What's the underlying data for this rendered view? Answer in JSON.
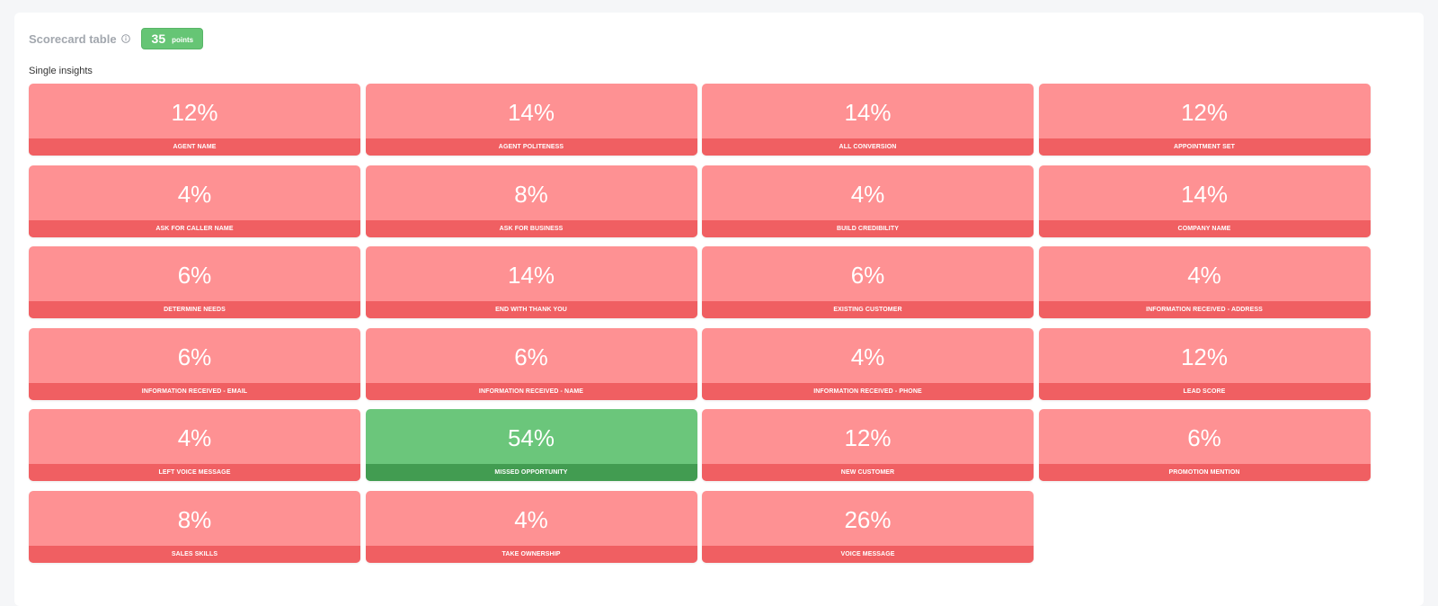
{
  "header": {
    "title": "Scorecard table",
    "points_value": "35",
    "points_unit": "points"
  },
  "section": {
    "label": "Single insights"
  },
  "colors": {
    "bad_tile": "#fe9193",
    "bad_label": "#f05f62",
    "good_tile": "#6bc67b",
    "good_label": "#429c51",
    "badge": "#66c575"
  },
  "tiles": [
    {
      "value": "12%",
      "label": "AGENT NAME",
      "status": "bad"
    },
    {
      "value": "14%",
      "label": "AGENT POLITENESS",
      "status": "bad"
    },
    {
      "value": "14%",
      "label": "ALL CONVERSION",
      "status": "bad"
    },
    {
      "value": "12%",
      "label": "APPOINTMENT SET",
      "status": "bad"
    },
    {
      "value": "4%",
      "label": "ASK FOR CALLER NAME",
      "status": "bad"
    },
    {
      "value": "8%",
      "label": "ASK FOR BUSINESS",
      "status": "bad"
    },
    {
      "value": "4%",
      "label": "BUILD CREDIBILITY",
      "status": "bad"
    },
    {
      "value": "14%",
      "label": "COMPANY NAME",
      "status": "bad"
    },
    {
      "value": "6%",
      "label": "DETERMINE NEEDS",
      "status": "bad"
    },
    {
      "value": "14%",
      "label": "END WITH THANK YOU",
      "status": "bad"
    },
    {
      "value": "6%",
      "label": "EXISTING CUSTOMER",
      "status": "bad"
    },
    {
      "value": "4%",
      "label": "INFORMATION RECEIVED - ADDRESS",
      "status": "bad"
    },
    {
      "value": "6%",
      "label": "INFORMATION RECEIVED - EMAIL",
      "status": "bad"
    },
    {
      "value": "6%",
      "label": "INFORMATION RECEIVED - NAME",
      "status": "bad"
    },
    {
      "value": "4%",
      "label": "INFORMATION RECEIVED - PHONE",
      "status": "bad"
    },
    {
      "value": "12%",
      "label": "LEAD SCORE",
      "status": "bad"
    },
    {
      "value": "4%",
      "label": "LEFT VOICE MESSAGE",
      "status": "bad"
    },
    {
      "value": "54%",
      "label": "MISSED OPPORTUNITY",
      "status": "good"
    },
    {
      "value": "12%",
      "label": "NEW CUSTOMER",
      "status": "bad"
    },
    {
      "value": "6%",
      "label": "PROMOTION MENTION",
      "status": "bad"
    },
    {
      "value": "8%",
      "label": "SALES SKILLS",
      "status": "bad"
    },
    {
      "value": "4%",
      "label": "TAKE OWNERSHIP",
      "status": "bad"
    },
    {
      "value": "26%",
      "label": "VOICE MESSAGE",
      "status": "bad"
    }
  ]
}
